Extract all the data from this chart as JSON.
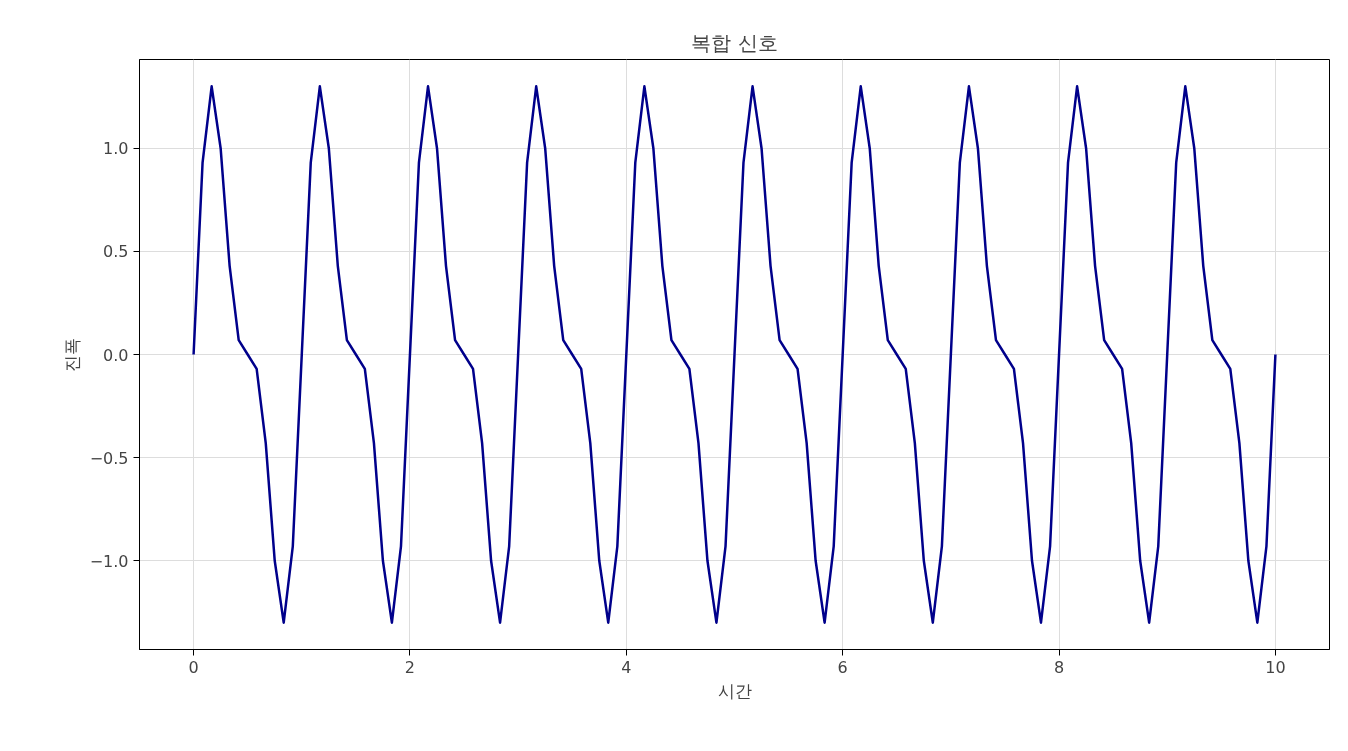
{
  "chart_data": {
    "type": "line",
    "title": "복합 신호",
    "xlabel": "시간",
    "ylabel": "진폭",
    "x": [
      0,
      0.083,
      0.167,
      0.25,
      0.333,
      0.417,
      0.5,
      0.583,
      0.667,
      0.75,
      0.833,
      0.917,
      1,
      1.083,
      1.167,
      1.25,
      1.333,
      1.417,
      1.5,
      1.583,
      1.667,
      1.75,
      1.833,
      1.917,
      2,
      2.083,
      2.167,
      2.25,
      2.333,
      2.417,
      2.5,
      2.583,
      2.667,
      2.75,
      2.833,
      2.917,
      3,
      3.083,
      3.167,
      3.25,
      3.333,
      3.417,
      3.5,
      3.583,
      3.667,
      3.75,
      3.833,
      3.917,
      4,
      4.083,
      4.167,
      4.25,
      4.333,
      4.417,
      4.5,
      4.583,
      4.667,
      4.75,
      4.833,
      4.917,
      5,
      5.083,
      5.167,
      5.25,
      5.333,
      5.417,
      5.5,
      5.583,
      5.667,
      5.75,
      5.833,
      5.917,
      6,
      6.083,
      6.167,
      6.25,
      6.333,
      6.417,
      6.5,
      6.583,
      6.667,
      6.75,
      6.833,
      6.917,
      7,
      7.083,
      7.167,
      7.25,
      7.333,
      7.417,
      7.5,
      7.583,
      7.667,
      7.75,
      7.833,
      7.917,
      8,
      8.083,
      8.167,
      8.25,
      8.333,
      8.417,
      8.5,
      8.583,
      8.667,
      8.75,
      8.833,
      8.917,
      9,
      9.083,
      9.167,
      9.25,
      9.333,
      9.417,
      9.5,
      9.583,
      9.667,
      9.75,
      9.833,
      9.917,
      10
    ],
    "series": [
      {
        "color": "#00008b",
        "values": [
          0,
          0.93,
          1.3,
          1.0,
          0.43,
          0.07,
          0,
          -0.07,
          -0.43,
          -1.0,
          -1.3,
          -0.93,
          0,
          0.93,
          1.3,
          1.0,
          0.43,
          0.07,
          0,
          -0.07,
          -0.43,
          -1.0,
          -1.3,
          -0.93,
          0,
          0.93,
          1.3,
          1.0,
          0.43,
          0.07,
          0,
          -0.07,
          -0.43,
          -1.0,
          -1.3,
          -0.93,
          0,
          0.93,
          1.3,
          1.0,
          0.43,
          0.07,
          0,
          -0.07,
          -0.43,
          -1.0,
          -1.3,
          -0.93,
          0,
          0.93,
          1.3,
          1.0,
          0.43,
          0.07,
          0,
          -0.07,
          -0.43,
          -1.0,
          -1.3,
          -0.93,
          0,
          0.93,
          1.3,
          1.0,
          0.43,
          0.07,
          0,
          -0.07,
          -0.43,
          -1.0,
          -1.3,
          -0.93,
          0,
          0.93,
          1.3,
          1.0,
          0.43,
          0.07,
          0,
          -0.07,
          -0.43,
          -1.0,
          -1.3,
          -0.93,
          0,
          0.93,
          1.3,
          1.0,
          0.43,
          0.07,
          0,
          -0.07,
          -0.43,
          -1.0,
          -1.3,
          -0.93,
          0,
          0.93,
          1.3,
          1.0,
          0.43,
          0.07,
          0,
          -0.07,
          -0.43,
          -1.0,
          -1.3,
          -0.93,
          0,
          0.93,
          1.3,
          1.0,
          0.43,
          0.07,
          0,
          -0.07,
          -0.43,
          -1.0,
          -1.3,
          -0.93,
          0
        ]
      }
    ],
    "xlim": [
      -0.5,
      10.5
    ],
    "ylim": [
      -1.43,
      1.43
    ],
    "xticks": [
      0,
      2,
      4,
      6,
      8,
      10
    ],
    "yticks": [
      {
        "value": -1.0,
        "label": "−1.0"
      },
      {
        "value": -0.5,
        "label": "−0.5"
      },
      {
        "value": 0,
        "label": "0.0"
      },
      {
        "value": 0.5,
        "label": "0.5"
      },
      {
        "value": 1.0,
        "label": "1.0"
      }
    ],
    "grid": true,
    "marker": "none",
    "line_style": "solid"
  }
}
